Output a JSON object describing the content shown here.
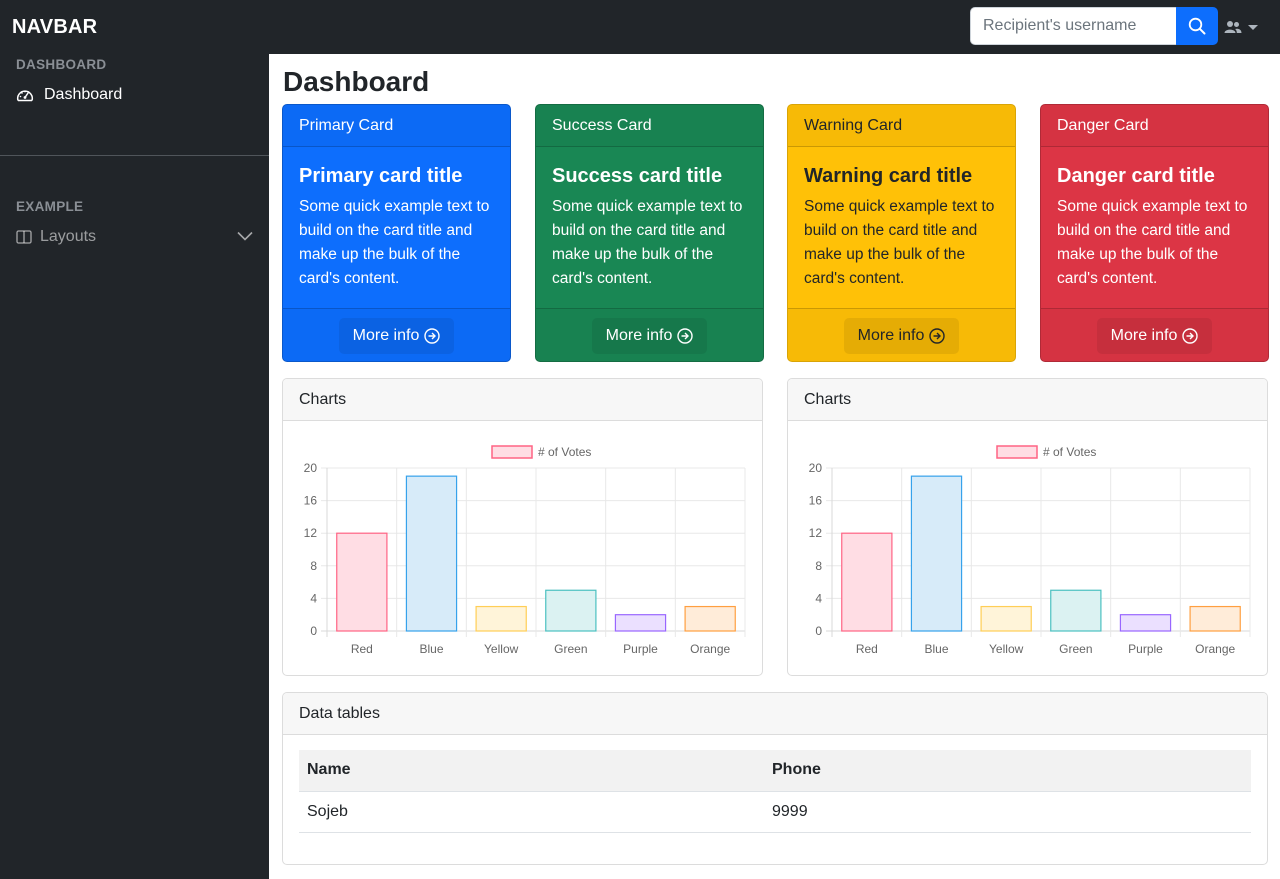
{
  "navbar": {
    "brand": "NAVBAR",
    "search": {
      "placeholder": "Recipient's username",
      "value": ""
    },
    "search_icon": "search-icon",
    "user_icon": "users-icon"
  },
  "sidebar": {
    "sections": [
      {
        "heading": "DASHBOARD",
        "items": [
          {
            "label": "Dashboard",
            "icon": "speedometer-icon"
          }
        ]
      },
      {
        "heading": "EXAMPLE",
        "items": [
          {
            "label": "Layouts",
            "icon": "columns-icon",
            "expandable": true
          }
        ]
      }
    ]
  },
  "main": {
    "title": "Dashboard",
    "cards": [
      {
        "header": "Primary Card",
        "title": "Primary card title",
        "text": "Some quick example text to build on the card title and make up the bulk of the card's content.",
        "link": "More info",
        "color": "#0d6efd"
      },
      {
        "header": "Success Card",
        "title": "Success card title",
        "text": "Some quick example text to build on the card title and make up the bulk of the card's content.",
        "link": "More info",
        "color": "#198754"
      },
      {
        "header": "Warning Card",
        "title": "Warning card title",
        "text": "Some quick example text to build on the card title and make up the bulk of the card's content.",
        "link": "More info",
        "color": "#ffc107"
      },
      {
        "header": "Danger Card",
        "title": "Danger card title",
        "text": "Some quick example text to build on the card title and make up the bulk of the card's content.",
        "link": "More info",
        "color": "#dc3545"
      }
    ],
    "chart_panels": [
      {
        "header": "Charts"
      },
      {
        "header": "Charts"
      }
    ],
    "table_panel": {
      "header": "Data tables",
      "columns": [
        "Name",
        "Phone"
      ],
      "rows": [
        [
          "Sojeb",
          "9999"
        ]
      ]
    }
  },
  "chart_data": [
    {
      "type": "bar",
      "categories": [
        "Red",
        "Blue",
        "Yellow",
        "Green",
        "Purple",
        "Orange"
      ],
      "series": [
        {
          "name": "# of Votes",
          "values": [
            12,
            19,
            3,
            5,
            2,
            3
          ]
        }
      ],
      "title": "",
      "xlabel": "",
      "ylabel": "",
      "ylim": [
        0,
        20
      ],
      "yticks": [
        0,
        4,
        8,
        12,
        16,
        20
      ],
      "grid": true,
      "legend": "top-center",
      "bar_fill": [
        "#ffdde4",
        "#d7ebf9",
        "#fff4d9",
        "#dbf2f2",
        "#ebe0ff",
        "#ffecd9"
      ],
      "bar_stroke": [
        "#ff6384",
        "#36a2eb",
        "#ffce56",
        "#4bc0c0",
        "#9966ff",
        "#ff9f40"
      ]
    },
    {
      "type": "bar",
      "categories": [
        "Red",
        "Blue",
        "Yellow",
        "Green",
        "Purple",
        "Orange"
      ],
      "series": [
        {
          "name": "# of Votes",
          "values": [
            12,
            19,
            3,
            5,
            2,
            3
          ]
        }
      ],
      "title": "",
      "xlabel": "",
      "ylabel": "",
      "ylim": [
        0,
        20
      ],
      "yticks": [
        0,
        4,
        8,
        12,
        16,
        20
      ],
      "grid": true,
      "legend": "top-center",
      "bar_fill": [
        "#ffdde4",
        "#d7ebf9",
        "#fff4d9",
        "#dbf2f2",
        "#ebe0ff",
        "#ffecd9"
      ],
      "bar_stroke": [
        "#ff6384",
        "#36a2eb",
        "#ffce56",
        "#4bc0c0",
        "#9966ff",
        "#ff9f40"
      ]
    }
  ]
}
